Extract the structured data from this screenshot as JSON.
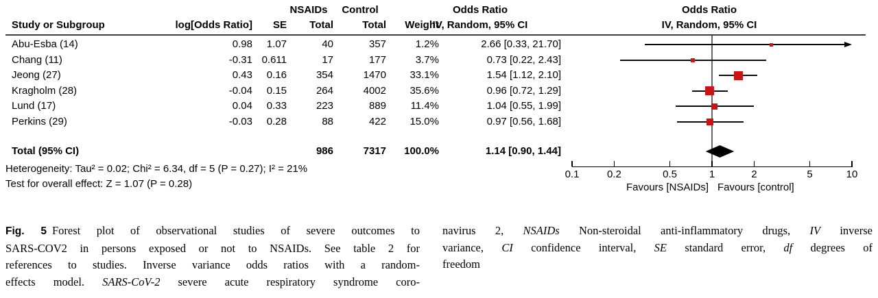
{
  "header": {
    "group_nsaids": "NSAIDs",
    "group_control": "Control",
    "col_study": "Study or Subgroup",
    "col_log_or": "log[Odds Ratio]",
    "col_se": "SE",
    "col_nsaids_total": "Total",
    "col_control_total": "Total",
    "col_weight": "Weight",
    "or_title": "Odds Ratio",
    "or_subtitle": "IV, Random, 95% CI",
    "plot_title": "Odds Ratio",
    "plot_subtitle": "IV, Random, 95% CI"
  },
  "stats": {
    "heterogeneity": "Heterogeneity: Tau² = 0.02; Chi² = 6.34, df = 5 (P = 0.27); I² = 21%",
    "overall_effect": "Test for overall effect: Z = 1.07 (P = 0.28)"
  },
  "chart_data": {
    "type": "forest",
    "effect_measure": "Odds Ratio",
    "model": "IV, Random, 95% CI",
    "x_scale": "log",
    "xlim": [
      0.1,
      10
    ],
    "x_ticks": [
      "0.1",
      "0.2",
      "0.5",
      "1",
      "2",
      "5",
      "10"
    ],
    "favours_left": "Favours [NSAIDs]",
    "favours_right": "Favours [control]",
    "studies": [
      {
        "study": "Abu-Esba (14)",
        "log_or": "0.98",
        "se": "1.07",
        "nsaids_total": "40",
        "control_total": "357",
        "weight": "1.2%",
        "weight_pct": 1.2,
        "or": 2.66,
        "ci_low": 0.33,
        "ci_high": 21.7,
        "ci_text": "2.66 [0.33, 21.70]"
      },
      {
        "study": "Chang (11)",
        "log_or": "-0.31",
        "se": "0.611",
        "nsaids_total": "17",
        "control_total": "177",
        "weight": "3.7%",
        "weight_pct": 3.7,
        "or": 0.73,
        "ci_low": 0.22,
        "ci_high": 2.43,
        "ci_text": "0.73 [0.22, 2.43]"
      },
      {
        "study": "Jeong (27)",
        "log_or": "0.43",
        "se": "0.16",
        "nsaids_total": "354",
        "control_total": "1470",
        "weight": "33.1%",
        "weight_pct": 33.1,
        "or": 1.54,
        "ci_low": 1.12,
        "ci_high": 2.1,
        "ci_text": "1.54 [1.12, 2.10]"
      },
      {
        "study": "Kragholm (28)",
        "log_or": "-0.04",
        "se": "0.15",
        "nsaids_total": "264",
        "control_total": "4002",
        "weight": "35.6%",
        "weight_pct": 35.6,
        "or": 0.96,
        "ci_low": 0.72,
        "ci_high": 1.29,
        "ci_text": "0.96 [0.72, 1.29]"
      },
      {
        "study": "Lund (17)",
        "log_or": "0.04",
        "se": "0.33",
        "nsaids_total": "223",
        "control_total": "889",
        "weight": "11.4%",
        "weight_pct": 11.4,
        "or": 1.04,
        "ci_low": 0.55,
        "ci_high": 1.99,
        "ci_text": "1.04 [0.55, 1.99]"
      },
      {
        "study": "Perkins (29)",
        "log_or": "-0.03",
        "se": "0.28",
        "nsaids_total": "88",
        "control_total": "422",
        "weight": "15.0%",
        "weight_pct": 15.0,
        "or": 0.97,
        "ci_low": 0.56,
        "ci_high": 1.68,
        "ci_text": "0.97 [0.56, 1.68]"
      }
    ],
    "total": {
      "label": "Total (95% CI)",
      "nsaids_total": "986",
      "control_total": "7317",
      "weight": "100.0%",
      "or": 1.14,
      "ci_low": 0.9,
      "ci_high": 1.44,
      "ci_text": "1.14 [0.90, 1.44]"
    }
  },
  "colors": {
    "marker_red": "#CB1316",
    "line_black": "#000000",
    "reference_line_gray": "#666666"
  },
  "caption": {
    "left": [
      {
        "segs": [
          {
            "t": "Fig. 5",
            "b": true,
            "f": "sans"
          },
          {
            "t": "Forest plot of observational studies of severe outcomes to"
          }
        ]
      },
      {
        "segs": [
          {
            "t": "SARS-COV2 in persons exposed or not to NSAIDs. See table 2 for"
          }
        ]
      },
      {
        "segs": [
          {
            "t": "references to studies. Inverse variance odds ratios with a random-"
          }
        ]
      },
      {
        "segs": [
          {
            "t": "effects model. "
          },
          {
            "t": "SARS-CoV-2",
            "i": true
          },
          {
            "t": " severe acute respiratory syndrome coro-"
          }
        ]
      }
    ],
    "right": [
      {
        "segs": [
          {
            "t": "navirus 2, "
          },
          {
            "t": "NSAIDs",
            "i": true
          },
          {
            "t": " Non-steroidal anti-inflammatory drugs, "
          },
          {
            "t": "IV",
            "i": true
          },
          {
            "t": " inverse"
          }
        ]
      },
      {
        "segs": [
          {
            "t": "variance, "
          },
          {
            "t": "CI",
            "i": true
          },
          {
            "t": " confidence interval, "
          },
          {
            "t": "SE",
            "i": true
          },
          {
            "t": " standard error, "
          },
          {
            "t": "df",
            "i": true
          },
          {
            "t": " degrees of"
          }
        ]
      },
      {
        "j": false,
        "segs": [
          {
            "t": "freedom"
          }
        ]
      }
    ]
  }
}
